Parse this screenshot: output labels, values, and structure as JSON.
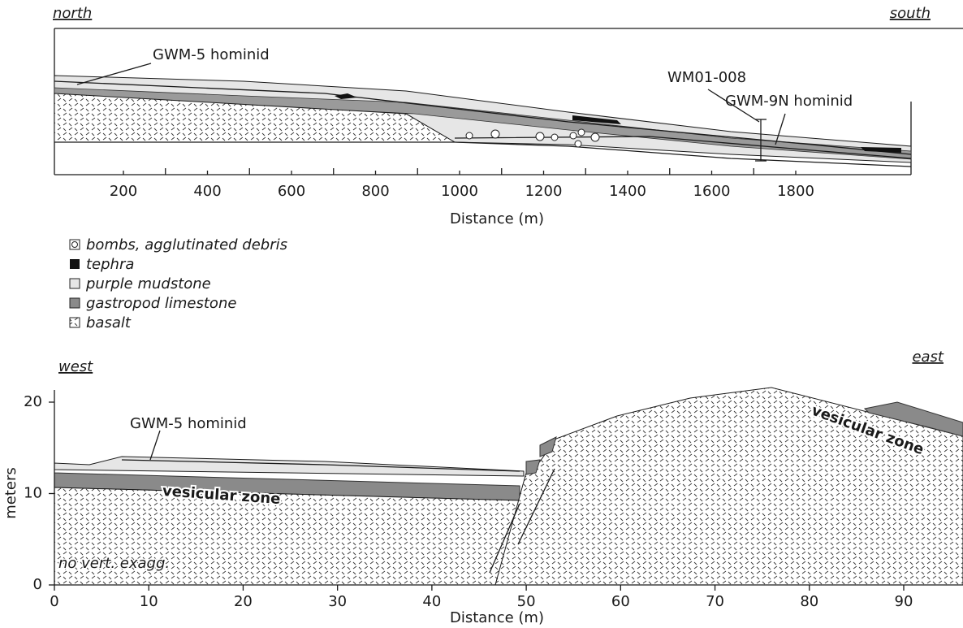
{
  "top_section": {
    "left_label": "north",
    "right_label": "south",
    "x_ticks": [
      200,
      400,
      600,
      800,
      1000,
      1200,
      1400,
      1600,
      1800
    ],
    "x_label": "Distance (m)",
    "annotations": [
      "GWM-5 hominid",
      "WM01-008",
      "GWM-9N hominid"
    ]
  },
  "legend": [
    "bombs, agglutinated debris",
    "tephra",
    "purple mudstone",
    "gastropod limestone",
    "basalt"
  ],
  "bottom_section": {
    "left_label": "west",
    "right_label": "east",
    "y_label": "meters",
    "y_ticks": [
      0,
      10,
      20
    ],
    "x_ticks": [
      0,
      10,
      20,
      30,
      40,
      50,
      60,
      70,
      80,
      90
    ],
    "x_label": "Distance (m)",
    "annotations": [
      "GWM-5 hominid",
      "vesicular zone",
      "vesicular zone",
      "no vert. exagg."
    ]
  }
}
